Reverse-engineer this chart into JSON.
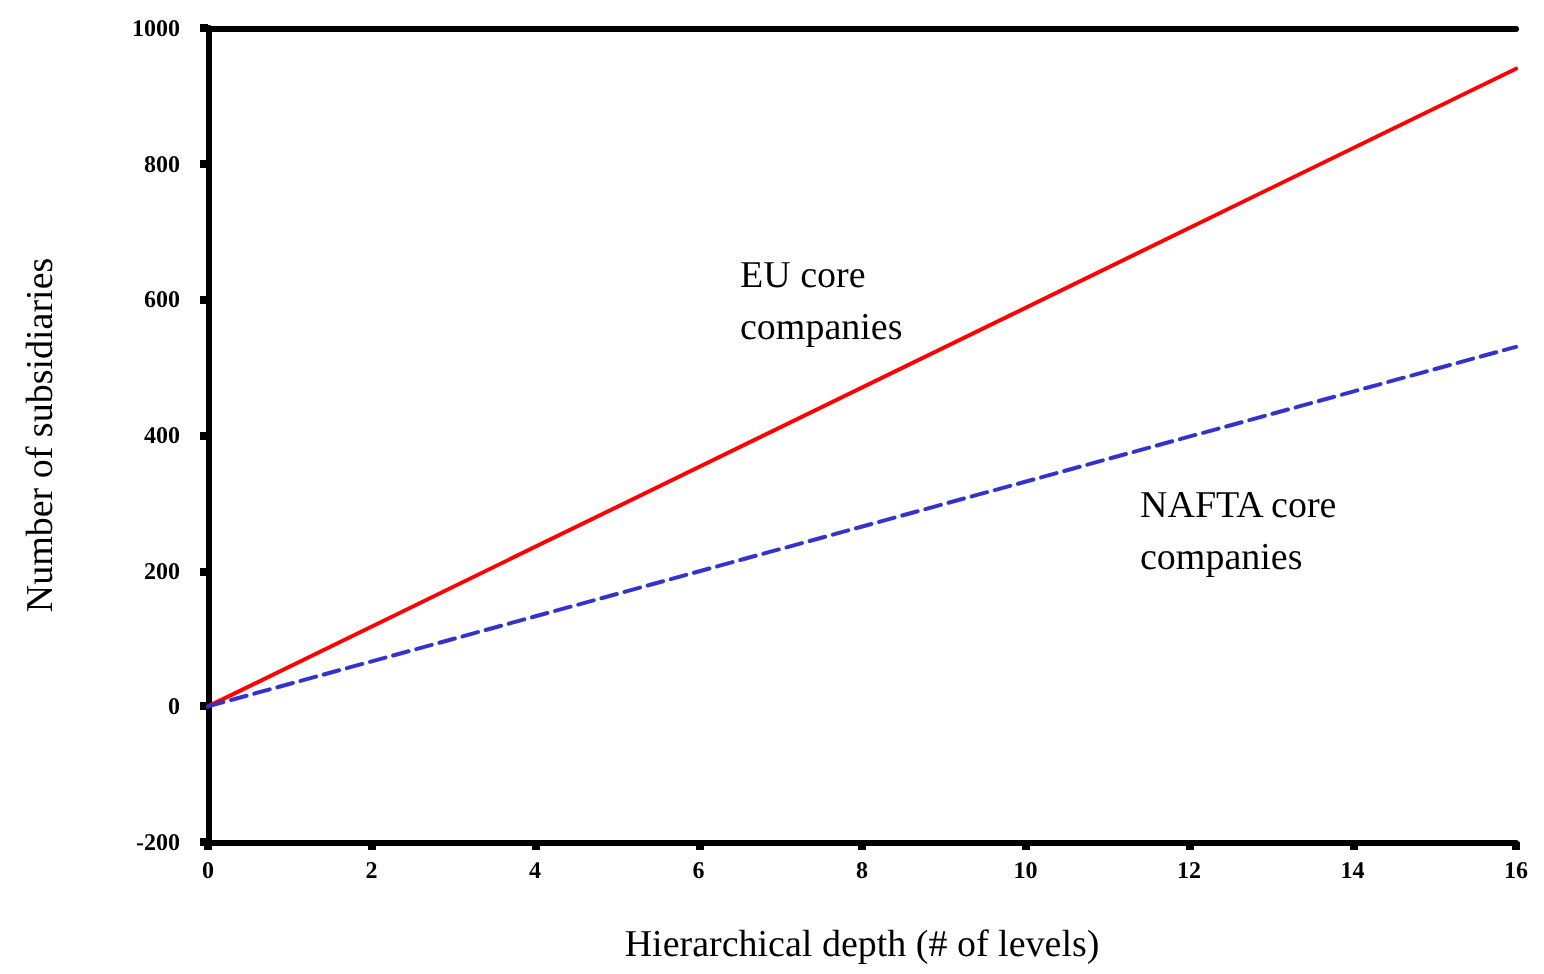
{
  "chart_data": {
    "type": "line",
    "xlabel": "Hierarchical depth (# of levels)",
    "ylabel": "Number of subsidiaries",
    "x": [
      0,
      16
    ],
    "series": [
      {
        "name": "EU core companies",
        "color": "#ff0000",
        "values": [
          0,
          940
        ],
        "line_style": "solid"
      },
      {
        "name": "NAFTA core companies",
        "color": "#3333cc",
        "values": [
          0,
          530
        ],
        "line_style": "dashed"
      }
    ],
    "xlim": [
      0,
      16
    ],
    "xticks": [
      0,
      2,
      4,
      6,
      8,
      10,
      12,
      14,
      16
    ],
    "ylim": [
      -200,
      1000
    ],
    "yticks": [
      -200,
      0,
      200,
      400,
      600,
      800,
      1000
    ],
    "grid": false,
    "legend": false,
    "marker": "none"
  }
}
